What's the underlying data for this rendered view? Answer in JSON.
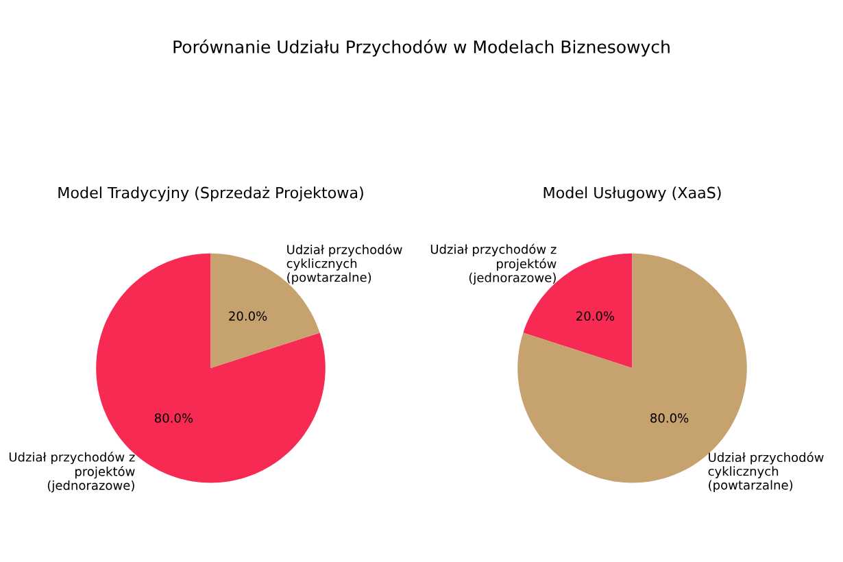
{
  "chart_data": [
    {
      "type": "pie",
      "title": "Model Tradycyjny (Sprzedaż Projektowa)",
      "subtitle": "Porównanie Udziału Przychodów w Modelach Biznesowych",
      "categories": [
        "Udział przychodów z\nprojektów\n(jednorazowe)",
        "Udział przychodów\ncyklicznych\n(powtarzalne)"
      ],
      "values": [
        80,
        20
      ],
      "colors": [
        "#f72a54",
        "#c5a26e"
      ],
      "value_labels": [
        "80.0%",
        "20.0%"
      ]
    },
    {
      "type": "pie",
      "title": "Model Usługowy (XaaS)",
      "categories": [
        "Udział przychodów z\nprojektów\n(jednorazowe)",
        "Udział przychodów\ncyklicznych\n(powtarzalne)"
      ],
      "values": [
        20,
        80
      ],
      "colors": [
        "#f72a54",
        "#c5a26e"
      ],
      "value_labels": [
        "20.0%",
        "80.0%"
      ]
    }
  ]
}
